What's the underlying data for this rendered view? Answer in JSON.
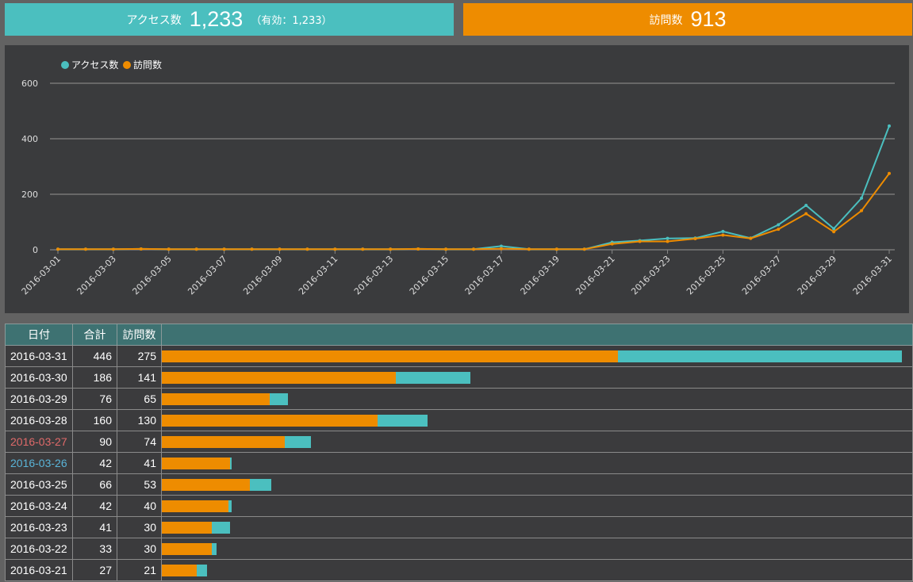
{
  "summary": {
    "access_label": "アクセス数",
    "access_value": "1,233",
    "access_sub": "（有効：1,233）",
    "visit_label": "訪問数",
    "visit_value": "913"
  },
  "colors": {
    "access": "#4bbfbf",
    "visit": "#ee8c00",
    "saturday": "#e06a6a",
    "sunday": "#5ab4d8"
  },
  "chart_data": {
    "type": "line",
    "x": [
      "2016-03-01",
      "2016-03-02",
      "2016-03-03",
      "2016-03-04",
      "2016-03-05",
      "2016-03-06",
      "2016-03-07",
      "2016-03-08",
      "2016-03-09",
      "2016-03-10",
      "2016-03-11",
      "2016-03-12",
      "2016-03-13",
      "2016-03-14",
      "2016-03-15",
      "2016-03-16",
      "2016-03-17",
      "2016-03-18",
      "2016-03-19",
      "2016-03-20",
      "2016-03-21",
      "2016-03-22",
      "2016-03-23",
      "2016-03-24",
      "2016-03-25",
      "2016-03-26",
      "2016-03-27",
      "2016-03-28",
      "2016-03-29",
      "2016-03-30",
      "2016-03-31"
    ],
    "x_tick_labels": [
      "2016-03-01",
      "2016-03-03",
      "2016-03-05",
      "2016-03-07",
      "2016-03-09",
      "2016-03-11",
      "2016-03-13",
      "2016-03-15",
      "2016-03-17",
      "2016-03-19",
      "2016-03-21",
      "2016-03-23",
      "2016-03-25",
      "2016-03-27",
      "2016-03-29",
      "2016-03-31"
    ],
    "y_ticks": [
      0,
      200,
      400,
      600
    ],
    "ylim": [
      0,
      600
    ],
    "grid": true,
    "legend_position": "top-left",
    "series": [
      {
        "name": "アクセス数",
        "color": "#4bbfbf",
        "values": [
          2,
          2,
          2,
          3,
          2,
          2,
          2,
          2,
          2,
          2,
          2,
          2,
          2,
          3,
          2,
          2,
          13,
          2,
          2,
          2,
          27,
          33,
          41,
          42,
          66,
          42,
          90,
          160,
          76,
          186,
          446
        ]
      },
      {
        "name": "訪問数",
        "color": "#ee8c00",
        "values": [
          2,
          2,
          2,
          3,
          2,
          2,
          2,
          2,
          2,
          2,
          2,
          2,
          2,
          3,
          2,
          2,
          4,
          2,
          2,
          2,
          21,
          30,
          30,
          40,
          53,
          41,
          74,
          130,
          65,
          141,
          275
        ]
      }
    ]
  },
  "table": {
    "headers": [
      "日付",
      "合計",
      "訪問数"
    ],
    "rows": [
      {
        "date": "2016-03-31",
        "total": "446",
        "visits": "275",
        "total_n": 446,
        "visits_n": 275,
        "day": ""
      },
      {
        "date": "2016-03-30",
        "total": "186",
        "visits": "141",
        "total_n": 186,
        "visits_n": 141,
        "day": ""
      },
      {
        "date": "2016-03-29",
        "total": "76",
        "visits": "65",
        "total_n": 76,
        "visits_n": 65,
        "day": ""
      },
      {
        "date": "2016-03-28",
        "total": "160",
        "visits": "130",
        "total_n": 160,
        "visits_n": 130,
        "day": ""
      },
      {
        "date": "2016-03-27",
        "total": "90",
        "visits": "74",
        "total_n": 90,
        "visits_n": 74,
        "day": "sat"
      },
      {
        "date": "2016-03-26",
        "total": "42",
        "visits": "41",
        "total_n": 42,
        "visits_n": 41,
        "day": "sun"
      },
      {
        "date": "2016-03-25",
        "total": "66",
        "visits": "53",
        "total_n": 66,
        "visits_n": 53,
        "day": ""
      },
      {
        "date": "2016-03-24",
        "total": "42",
        "visits": "40",
        "total_n": 42,
        "visits_n": 40,
        "day": ""
      },
      {
        "date": "2016-03-23",
        "total": "41",
        "visits": "30",
        "total_n": 41,
        "visits_n": 30,
        "day": ""
      },
      {
        "date": "2016-03-22",
        "total": "33",
        "visits": "30",
        "total_n": 33,
        "visits_n": 30,
        "day": ""
      },
      {
        "date": "2016-03-21",
        "total": "27",
        "visits": "21",
        "total_n": 27,
        "visits_n": 21,
        "day": ""
      }
    ]
  }
}
